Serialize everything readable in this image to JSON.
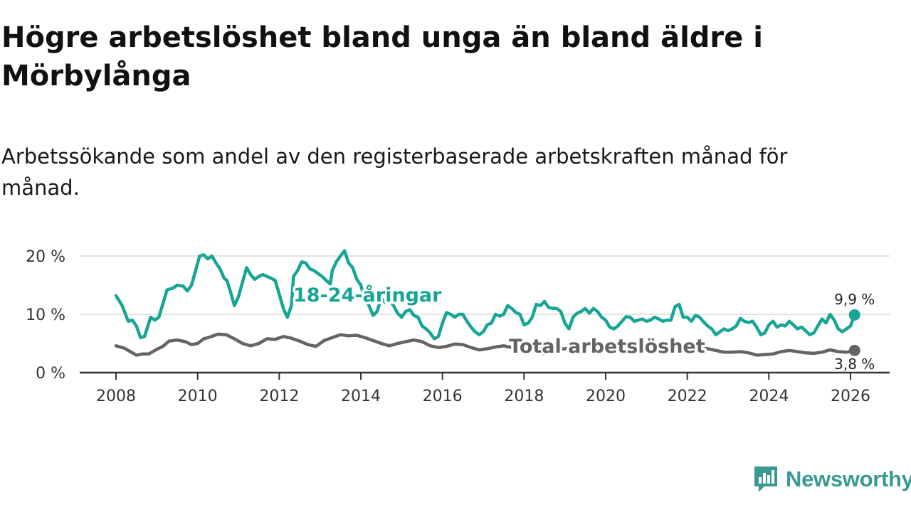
{
  "title": "Högre arbetslöshet bland unga än bland äldre i Mörbylånga",
  "subtitle": "Arbetssökande som andel av den registerbaserade arbetskraften månad för månad.",
  "brand": {
    "name": "Newsworthy",
    "color": "#3a9a92"
  },
  "chart_data": {
    "type": "line",
    "title": "Högre arbetslöshet bland unga än bland äldre i Mörbylånga",
    "xlabel": "",
    "ylabel": "",
    "x_range": [
      2007.8,
      2026.1
    ],
    "ylim": [
      0,
      22
    ],
    "y_ticks": [
      0,
      10,
      20
    ],
    "y_tick_labels": [
      "0 %",
      "10 %",
      "20 %"
    ],
    "x_ticks": [
      2008,
      2010,
      2012,
      2014,
      2016,
      2018,
      2020,
      2022,
      2024,
      2026
    ],
    "x_tick_labels": [
      "2008",
      "2010",
      "2012",
      "2014",
      "2016",
      "2018",
      "2020",
      "2022",
      "2024",
      "2026"
    ],
    "grid": true,
    "series": [
      {
        "name": "18-24-åringar",
        "label": "18-24-åringar",
        "color": "#17a596",
        "end_label": "9,9 %",
        "points": [
          [
            2008.0,
            13.2
          ],
          [
            2008.15,
            11.5
          ],
          [
            2008.3,
            8.8
          ],
          [
            2008.4,
            9.0
          ],
          [
            2008.5,
            8.0
          ],
          [
            2008.6,
            6.0
          ],
          [
            2008.7,
            6.2
          ],
          [
            2008.85,
            9.5
          ],
          [
            2008.95,
            9.0
          ],
          [
            2009.05,
            9.5
          ],
          [
            2009.25,
            14.2
          ],
          [
            2009.4,
            14.5
          ],
          [
            2009.5,
            15.0
          ],
          [
            2009.65,
            14.8
          ],
          [
            2009.75,
            14.0
          ],
          [
            2009.85,
            15.0
          ],
          [
            2009.95,
            17.5
          ],
          [
            2010.05,
            20.0
          ],
          [
            2010.15,
            20.2
          ],
          [
            2010.25,
            19.5
          ],
          [
            2010.35,
            20.0
          ],
          [
            2010.45,
            18.8
          ],
          [
            2010.55,
            17.8
          ],
          [
            2010.65,
            16.2
          ],
          [
            2010.72,
            15.8
          ],
          [
            2010.82,
            13.5
          ],
          [
            2010.9,
            11.5
          ],
          [
            2011.0,
            13.0
          ],
          [
            2011.1,
            15.5
          ],
          [
            2011.2,
            18.0
          ],
          [
            2011.3,
            16.8
          ],
          [
            2011.4,
            16.0
          ],
          [
            2011.5,
            16.5
          ],
          [
            2011.6,
            16.8
          ],
          [
            2011.7,
            16.5
          ],
          [
            2011.8,
            16.2
          ],
          [
            2011.9,
            15.8
          ],
          [
            2012.0,
            13.5
          ],
          [
            2012.1,
            11.0
          ],
          [
            2012.2,
            9.5
          ],
          [
            2012.3,
            11.5
          ],
          [
            2012.35,
            16.5
          ],
          [
            2012.45,
            17.5
          ],
          [
            2012.55,
            19.0
          ],
          [
            2012.65,
            18.8
          ],
          [
            2012.75,
            17.8
          ],
          [
            2012.85,
            17.5
          ],
          [
            2012.95,
            17.0
          ],
          [
            2013.05,
            16.5
          ],
          [
            2013.15,
            15.8
          ],
          [
            2013.25,
            15.2
          ],
          [
            2013.3,
            17.5
          ],
          [
            2013.4,
            19.0
          ],
          [
            2013.5,
            20.0
          ],
          [
            2013.6,
            20.9
          ],
          [
            2013.7,
            18.8
          ],
          [
            2013.8,
            18.0
          ],
          [
            2013.9,
            16.0
          ],
          [
            2014.0,
            15.0
          ],
          [
            2014.1,
            12.5
          ],
          [
            2014.2,
            11.5
          ],
          [
            2014.3,
            9.8
          ],
          [
            2014.4,
            10.5
          ],
          [
            2014.5,
            12.8
          ],
          [
            2014.6,
            12.0
          ],
          [
            2014.7,
            12.5
          ],
          [
            2014.8,
            11.5
          ],
          [
            2014.9,
            10.2
          ],
          [
            2015.0,
            9.5
          ],
          [
            2015.1,
            10.5
          ],
          [
            2015.2,
            10.8
          ],
          [
            2015.3,
            9.8
          ],
          [
            2015.4,
            9.5
          ],
          [
            2015.5,
            8.0
          ],
          [
            2015.6,
            7.5
          ],
          [
            2015.7,
            6.8
          ],
          [
            2015.8,
            5.8
          ],
          [
            2015.9,
            6.2
          ],
          [
            2016.0,
            8.5
          ],
          [
            2016.1,
            10.3
          ],
          [
            2016.2,
            10.0
          ],
          [
            2016.3,
            9.5
          ],
          [
            2016.4,
            10.0
          ],
          [
            2016.5,
            10.0
          ],
          [
            2016.6,
            8.8
          ],
          [
            2016.7,
            7.8
          ],
          [
            2016.8,
            7.0
          ],
          [
            2016.9,
            6.5
          ],
          [
            2017.0,
            7.0
          ],
          [
            2017.1,
            8.2
          ],
          [
            2017.2,
            8.5
          ],
          [
            2017.3,
            10.0
          ],
          [
            2017.4,
            9.7
          ],
          [
            2017.5,
            10.0
          ],
          [
            2017.6,
            11.5
          ],
          [
            2017.7,
            11.0
          ],
          [
            2017.8,
            10.3
          ],
          [
            2017.9,
            10.0
          ],
          [
            2018.0,
            8.2
          ],
          [
            2018.1,
            8.5
          ],
          [
            2018.2,
            9.5
          ],
          [
            2018.3,
            11.7
          ],
          [
            2018.4,
            11.5
          ],
          [
            2018.5,
            12.2
          ],
          [
            2018.6,
            11.2
          ],
          [
            2018.7,
            11.0
          ],
          [
            2018.8,
            11.0
          ],
          [
            2018.9,
            10.5
          ],
          [
            2019.0,
            8.5
          ],
          [
            2019.1,
            7.5
          ],
          [
            2019.2,
            9.5
          ],
          [
            2019.3,
            10.2
          ],
          [
            2019.4,
            10.5
          ],
          [
            2019.5,
            11.0
          ],
          [
            2019.6,
            10.2
          ],
          [
            2019.7,
            11.0
          ],
          [
            2019.8,
            10.5
          ],
          [
            2019.9,
            9.5
          ],
          [
            2020.0,
            9.0
          ],
          [
            2020.1,
            7.8
          ],
          [
            2020.2,
            7.5
          ],
          [
            2020.3,
            8.0
          ],
          [
            2020.4,
            8.8
          ],
          [
            2020.5,
            9.6
          ],
          [
            2020.6,
            9.5
          ],
          [
            2020.7,
            8.8
          ],
          [
            2020.8,
            9.0
          ],
          [
            2020.9,
            9.2
          ],
          [
            2021.0,
            8.8
          ],
          [
            2021.1,
            9.0
          ],
          [
            2021.2,
            9.5
          ],
          [
            2021.3,
            9.2
          ],
          [
            2021.4,
            8.8
          ],
          [
            2021.5,
            9.0
          ],
          [
            2021.6,
            9.0
          ],
          [
            2021.7,
            11.3
          ],
          [
            2021.8,
            11.7
          ],
          [
            2021.9,
            9.5
          ],
          [
            2022.0,
            9.5
          ],
          [
            2022.1,
            8.8
          ],
          [
            2022.2,
            9.8
          ],
          [
            2022.3,
            9.5
          ],
          [
            2022.4,
            8.7
          ],
          [
            2022.5,
            8.0
          ],
          [
            2022.6,
            7.5
          ],
          [
            2022.7,
            6.5
          ],
          [
            2022.8,
            7.0
          ],
          [
            2022.9,
            7.5
          ],
          [
            2023.0,
            7.2
          ],
          [
            2023.1,
            7.5
          ],
          [
            2023.2,
            8.0
          ],
          [
            2023.3,
            9.3
          ],
          [
            2023.4,
            8.8
          ],
          [
            2023.5,
            8.6
          ],
          [
            2023.6,
            8.8
          ],
          [
            2023.7,
            7.8
          ],
          [
            2023.8,
            6.5
          ],
          [
            2023.9,
            6.8
          ],
          [
            2024.0,
            8.2
          ],
          [
            2024.1,
            8.8
          ],
          [
            2024.2,
            7.8
          ],
          [
            2024.3,
            8.2
          ],
          [
            2024.4,
            8.0
          ],
          [
            2024.5,
            8.8
          ],
          [
            2024.6,
            8.2
          ],
          [
            2024.7,
            7.5
          ],
          [
            2024.8,
            7.8
          ],
          [
            2024.9,
            7.2
          ],
          [
            2025.0,
            6.5
          ],
          [
            2025.1,
            6.8
          ],
          [
            2025.2,
            8.0
          ],
          [
            2025.3,
            9.2
          ],
          [
            2025.4,
            8.5
          ],
          [
            2025.5,
            10.0
          ],
          [
            2025.6,
            9.0
          ],
          [
            2025.7,
            7.5
          ],
          [
            2025.8,
            7.0
          ],
          [
            2025.9,
            7.5
          ],
          [
            2026.0,
            8.0
          ],
          [
            2026.1,
            9.9
          ]
        ]
      },
      {
        "name": "Total arbetslöshet",
        "label": "Total arbetslöshet",
        "color": "#666366",
        "end_label": "3,8 %",
        "points": [
          [
            2008.0,
            4.6
          ],
          [
            2008.2,
            4.2
          ],
          [
            2008.4,
            3.4
          ],
          [
            2008.5,
            3.0
          ],
          [
            2008.65,
            3.2
          ],
          [
            2008.8,
            3.2
          ],
          [
            2009.0,
            4.0
          ],
          [
            2009.15,
            4.5
          ],
          [
            2009.3,
            5.4
          ],
          [
            2009.5,
            5.6
          ],
          [
            2009.7,
            5.3
          ],
          [
            2009.85,
            4.8
          ],
          [
            2010.0,
            5.0
          ],
          [
            2010.15,
            5.8
          ],
          [
            2010.3,
            6.1
          ],
          [
            2010.5,
            6.6
          ],
          [
            2010.7,
            6.5
          ],
          [
            2010.9,
            5.8
          ],
          [
            2011.1,
            5.0
          ],
          [
            2011.3,
            4.6
          ],
          [
            2011.5,
            5.0
          ],
          [
            2011.7,
            5.8
          ],
          [
            2011.9,
            5.7
          ],
          [
            2012.1,
            6.2
          ],
          [
            2012.3,
            5.9
          ],
          [
            2012.5,
            5.4
          ],
          [
            2012.7,
            4.8
          ],
          [
            2012.9,
            4.5
          ],
          [
            2013.1,
            5.5
          ],
          [
            2013.3,
            6.0
          ],
          [
            2013.5,
            6.5
          ],
          [
            2013.7,
            6.3
          ],
          [
            2013.9,
            6.4
          ],
          [
            2014.1,
            6.0
          ],
          [
            2014.3,
            5.5
          ],
          [
            2014.5,
            5.0
          ],
          [
            2014.7,
            4.6
          ],
          [
            2014.9,
            5.0
          ],
          [
            2015.1,
            5.3
          ],
          [
            2015.3,
            5.6
          ],
          [
            2015.5,
            5.3
          ],
          [
            2015.7,
            4.6
          ],
          [
            2015.9,
            4.3
          ],
          [
            2016.1,
            4.5
          ],
          [
            2016.3,
            4.9
          ],
          [
            2016.5,
            4.8
          ],
          [
            2016.7,
            4.3
          ],
          [
            2016.9,
            3.9
          ],
          [
            2017.1,
            4.1
          ],
          [
            2017.3,
            4.4
          ],
          [
            2017.5,
            4.6
          ],
          [
            2017.7,
            4.3
          ],
          [
            2017.9,
            4.0
          ],
          [
            2018.1,
            3.8
          ],
          [
            2018.3,
            3.5
          ],
          [
            2018.5,
            3.2
          ],
          [
            2018.7,
            3.6
          ],
          [
            2018.9,
            4.0
          ],
          [
            2019.1,
            4.2
          ],
          [
            2019.3,
            4.4
          ],
          [
            2019.5,
            4.7
          ],
          [
            2019.7,
            4.8
          ],
          [
            2019.9,
            4.9
          ],
          [
            2020.1,
            4.7
          ],
          [
            2020.3,
            4.9
          ],
          [
            2020.5,
            4.4
          ],
          [
            2020.7,
            3.9
          ],
          [
            2020.9,
            3.6
          ],
          [
            2021.1,
            3.9
          ],
          [
            2021.3,
            4.2
          ],
          [
            2021.5,
            4.5
          ],
          [
            2021.7,
            4.7
          ],
          [
            2021.9,
            4.9
          ],
          [
            2022.1,
            4.6
          ],
          [
            2022.3,
            4.4
          ],
          [
            2022.5,
            4.1
          ],
          [
            2022.7,
            3.8
          ],
          [
            2022.9,
            3.5
          ],
          [
            2023.1,
            3.5
          ],
          [
            2023.3,
            3.6
          ],
          [
            2023.5,
            3.4
          ],
          [
            2023.7,
            3.0
          ],
          [
            2023.9,
            3.1
          ],
          [
            2024.1,
            3.2
          ],
          [
            2024.3,
            3.6
          ],
          [
            2024.5,
            3.8
          ],
          [
            2024.7,
            3.6
          ],
          [
            2024.9,
            3.4
          ],
          [
            2025.1,
            3.3
          ],
          [
            2025.3,
            3.5
          ],
          [
            2025.5,
            3.9
          ],
          [
            2025.7,
            3.6
          ],
          [
            2025.9,
            3.5
          ],
          [
            2026.0,
            3.6
          ],
          [
            2026.1,
            3.8
          ]
        ]
      }
    ]
  }
}
